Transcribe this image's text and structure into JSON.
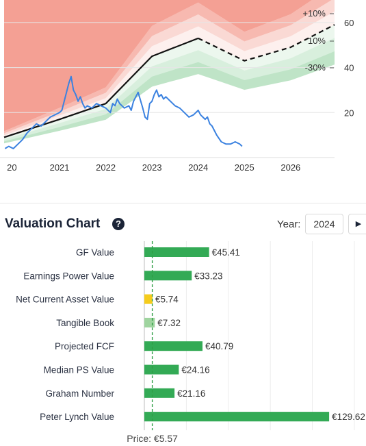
{
  "chart_data": [
    {
      "type": "line",
      "title": "",
      "xlabel": "",
      "ylabel": "",
      "x_ticks": [
        "20",
        "2021",
        "2022",
        "2023",
        "2024",
        "2025",
        "2026"
      ],
      "y_ticks": [
        "60",
        "40",
        "20"
      ],
      "ylim": [
        0,
        70
      ],
      "xlim": [
        2019.8,
        2026.95
      ],
      "band_labels": [
        "+10%",
        "10%",
        "-30%"
      ],
      "series": [
        {
          "role": "gf-value",
          "x": [
            2019.8,
            2021,
            2022,
            2023,
            2024,
            2025,
            2026,
            2026.95
          ],
          "values": [
            9,
            17,
            24,
            45,
            53,
            43,
            49,
            59
          ]
        },
        {
          "role": "price",
          "x": [
            2019.82,
            2019.9,
            2020,
            2020.1,
            2020.2,
            2020.3,
            2020.4,
            2020.5,
            2020.6,
            2020.7,
            2020.8,
            2020.9,
            2021,
            2021.05,
            2021.1,
            2021.15,
            2021.2,
            2021.25,
            2021.3,
            2021.35,
            2021.4,
            2021.45,
            2021.5,
            2021.55,
            2021.6,
            2021.7,
            2021.8,
            2021.9,
            2022,
            2022.1,
            2022.15,
            2022.2,
            2022.25,
            2022.3,
            2022.4,
            2022.5,
            2022.55,
            2022.6,
            2022.65,
            2022.7,
            2022.8,
            2022.85,
            2022.9,
            2022.95,
            2023,
            2023.05,
            2023.1,
            2023.15,
            2023.2,
            2023.25,
            2023.3,
            2023.4,
            2023.5,
            2023.6,
            2023.7,
            2023.8,
            2023.9,
            2024,
            2024.05,
            2024.1,
            2024.15,
            2024.2,
            2024.25,
            2024.3,
            2024.4,
            2024.5,
            2024.6,
            2024.7,
            2024.8,
            2024.9,
            2024.95
          ],
          "values": [
            4,
            5,
            4,
            6,
            8,
            11,
            13,
            15,
            14,
            16,
            18,
            19,
            20,
            21,
            25,
            29,
            33,
            36,
            30,
            28,
            25,
            27,
            24,
            22,
            23,
            22,
            24,
            23,
            22,
            20,
            24,
            23,
            26,
            24,
            22,
            23,
            21,
            25,
            27,
            29,
            22,
            18,
            17,
            24,
            25,
            28,
            30,
            27,
            28,
            26,
            27,
            25,
            23,
            22,
            20,
            18,
            19,
            21,
            19,
            18,
            17,
            18,
            15,
            14,
            10,
            7,
            6,
            6,
            7,
            6,
            5
          ]
        },
        {
          "role": "gf-value-band",
          "offsets_pct": [
            -30,
            -20,
            -10,
            10,
            20,
            30
          ]
        }
      ],
      "colors": {
        "gf_line": "#111111",
        "price": "#3b82e0",
        "upper_band": "#f08070",
        "lower_band": "#7fc98f"
      }
    },
    {
      "type": "bar",
      "title": "Valuation Chart",
      "categories": [
        "GF Value",
        "Earnings Power Value",
        "Net Current Asset Value",
        "Tangible Book",
        "Projected FCF",
        "Median PS Value",
        "Graham Number",
        "Peter Lynch Value"
      ],
      "values": [
        45.41,
        33.23,
        5.74,
        7.32,
        40.79,
        24.16,
        21.16,
        129.62
      ],
      "value_labels": [
        "€45.41",
        "€33.23",
        "€5.74",
        "€7.32",
        "€40.79",
        "€24.16",
        "€21.16",
        "€129.62"
      ],
      "bar_colors": [
        "#33aa55",
        "#33aa55",
        "#f5cc1c",
        "#9fd49f",
        "#33aa55",
        "#33aa55",
        "#33aa55",
        "#33aa55"
      ],
      "price": 5.57,
      "price_label": "Price: €5.57",
      "xlim": [
        0,
        155
      ],
      "grid": true
    }
  ],
  "valuation": {
    "title": "Valuation Chart",
    "help": "?",
    "year_label": "Year:",
    "year_value": "2024",
    "play_icon": "▶"
  }
}
